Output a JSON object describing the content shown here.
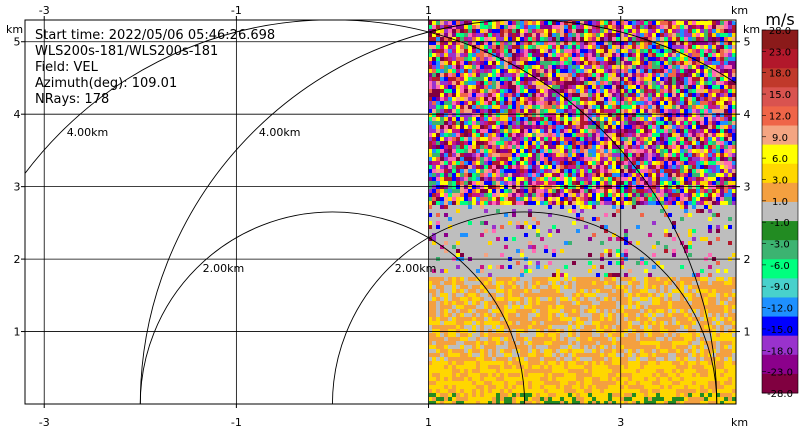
{
  "chart_data": {
    "type": "heatmap",
    "subtype": "radar-ppi",
    "info": {
      "start_time": "Start time: 2022/05/06 05:46:26.698",
      "instrument": "WLS200s-181/WLS200s-181",
      "field": "Field: VEL",
      "azimuth": "Azimuth(deg): 109.01",
      "nrays": "NRays: 178"
    },
    "axis_unit": "km",
    "xlim": [
      -3.2,
      4.2
    ],
    "ylim": [
      0,
      5.3
    ],
    "x_ticks": [
      -3,
      -1,
      1,
      3
    ],
    "x_tick_labels": [
      "-3",
      "-1",
      "1",
      "3"
    ],
    "y_ticks": [
      1,
      2,
      3,
      4,
      5
    ],
    "y_tick_labels": [
      "1",
      "2",
      "3",
      "4",
      "5"
    ],
    "range_rings": [
      {
        "center_x": 0,
        "radius": 2,
        "label": "2.00km"
      },
      {
        "center_x": 0,
        "radius": 4,
        "label": "4.00km"
      },
      {
        "center_x": 2.0,
        "radius": 2,
        "label": "2.00km"
      },
      {
        "center_x": 2.0,
        "radius": 4,
        "label": "4.00km"
      }
    ],
    "data_sector": {
      "center_x": 1.0,
      "center_y": 0,
      "max_range_km": 5.1,
      "az_start_deg": 0,
      "az_end_deg": 90
    },
    "colorbar": {
      "unit": "m/s",
      "tick_labels": [
        "28.0",
        "23.0",
        "18.0",
        "15.0",
        "12.0",
        "9.0",
        "6.0",
        "3.0",
        "1.0",
        "-1.0",
        "-3.0",
        "-6.0",
        "-9.0",
        "-12.0",
        "-15.0",
        "-18.0",
        "-23.0",
        "-28.0"
      ],
      "colors": [
        "#8b1a1a",
        "#b2182b",
        "#c0392b",
        "#d9534f",
        "#ef6548",
        "#f4a582",
        "#ffff00",
        "#ffd700",
        "#f4a040",
        "#bebebe",
        "#228b22",
        "#3cb371",
        "#00ff7f",
        "#48d1cc",
        "#1e90ff",
        "#0000ff",
        "#9932cc",
        "#8b008b",
        "#800040"
      ]
    }
  }
}
